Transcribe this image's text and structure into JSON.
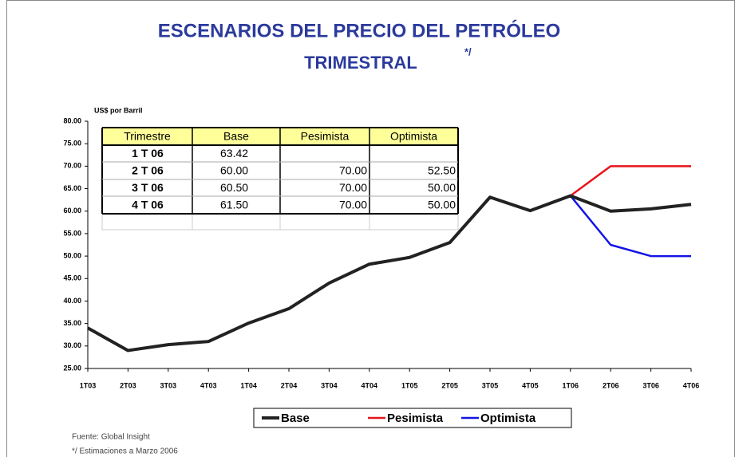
{
  "chart_data": {
    "type": "line",
    "title": [
      "ESCENARIOS DEL PRECIO DEL PETRÓLEO",
      "TRIMESTRAL"
    ],
    "title_note": "*/",
    "y_label": "US$ por Barril",
    "categories": [
      "1T03",
      "2T03",
      "3T03",
      "4T03",
      "1T04",
      "2T04",
      "3T04",
      "4T04",
      "1T05",
      "2T05",
      "3T05",
      "4T05",
      "1T06",
      "2T06",
      "3T06",
      "4T06"
    ],
    "series": [
      {
        "name": "Base",
        "color": "#222222",
        "values": [
          34.0,
          29.0,
          30.3,
          31.0,
          35.1,
          38.3,
          44.0,
          48.2,
          49.7,
          53.0,
          63.1,
          60.1,
          63.42,
          60.0,
          60.5,
          61.5
        ]
      },
      {
        "name": "Pesimista",
        "color": "#e8141c",
        "values": [
          null,
          null,
          null,
          null,
          null,
          null,
          null,
          null,
          null,
          null,
          null,
          null,
          63.42,
          70.0,
          70.0,
          70.0
        ]
      },
      {
        "name": "Optimista",
        "color": "#1414e6",
        "values": [
          null,
          null,
          null,
          null,
          null,
          null,
          null,
          null,
          null,
          null,
          null,
          null,
          63.42,
          52.5,
          50.0,
          50.0
        ]
      }
    ],
    "ylim": [
      25,
      80
    ],
    "yticks": [
      {
        "value": 25,
        "label": "25.00"
      },
      {
        "value": 30,
        "label": "30.00"
      },
      {
        "value": 35,
        "label": "35.00"
      },
      {
        "value": 40,
        "label": "40.00"
      },
      {
        "value": 45,
        "label": "45.00"
      },
      {
        "value": 50,
        "label": "50.00"
      },
      {
        "value": 55,
        "label": "55.00"
      },
      {
        "value": 60,
        "label": "60.00"
      },
      {
        "value": 65,
        "label": "65.00"
      },
      {
        "value": 70,
        "label": "70.00"
      },
      {
        "value": 75,
        "label": "75.00"
      },
      {
        "value": 80,
        "label": "80.00"
      }
    ],
    "table": {
      "header": [
        "Trimestre",
        "Base",
        "Pesimista",
        "Optimista"
      ],
      "rows": [
        [
          "1 T 06",
          "63.42",
          "",
          ""
        ],
        [
          "2 T 06",
          "60.00",
          "70.00",
          "52.50"
        ],
        [
          "3 T 06",
          "60.50",
          "70.00",
          "50.00"
        ],
        [
          "4 T 06",
          "61.50",
          "70.00",
          "50.00"
        ]
      ]
    },
    "notes": [
      "Fuente: Global Insight",
      "*/ Estimaciones a Marzo 2006"
    ]
  }
}
